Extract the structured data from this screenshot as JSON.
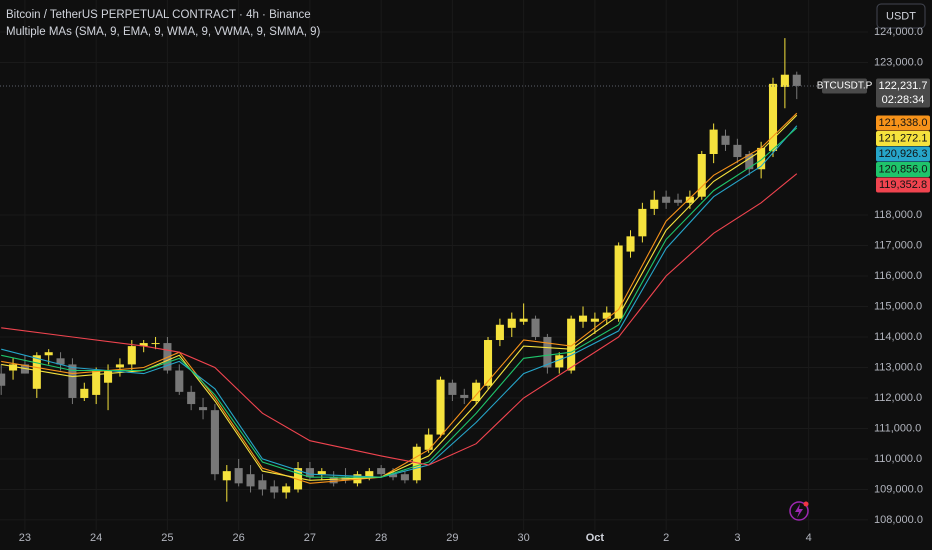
{
  "chart_data": {
    "type": "candlestick",
    "title": "Bitcoin / TetherUS PERPETUAL CONTRACT · 4h · Binance",
    "indicator": "Multiple MAs (SMA, 9, EMA, 9, WMA, 9, VWMA, 9, SMMA, 9)",
    "currency": "USDT",
    "symbol": "BTCUSDT.P",
    "countdown": "02:28:34",
    "up_color": "#f5e23d",
    "down_color": "#787878",
    "open": [
      112800,
      112900,
      113100,
      112300,
      113400,
      113300,
      113100,
      112000,
      112100,
      112500,
      113000,
      113100,
      113700,
      113800,
      113800,
      112900,
      112200,
      111700,
      111600,
      109300,
      109700,
      109500,
      109300,
      109100,
      108900,
      109000,
      109700,
      109500,
      109400,
      109400,
      109200,
      109400,
      109700,
      109500,
      109500,
      109300,
      110300,
      110800,
      112500,
      112100,
      111900,
      112400,
      113900,
      114300,
      114500,
      114600,
      114000,
      113000,
      112900,
      114500,
      114500,
      114600,
      114600,
      116800,
      117300,
      118200,
      118600,
      118500,
      118400,
      118600,
      120000,
      120600,
      120300,
      120000,
      119500,
      120100,
      122200,
      122600
    ],
    "high": [
      113100,
      113300,
      113400,
      113500,
      113600,
      113500,
      113300,
      112500,
      113000,
      113100,
      113300,
      113900,
      113900,
      114000,
      114000,
      113100,
      112400,
      112000,
      111800,
      109800,
      110000,
      109800,
      109500,
      109300,
      109200,
      109900,
      109900,
      109700,
      109600,
      109700,
      109600,
      109700,
      109800,
      109700,
      109600,
      110500,
      111000,
      112700,
      112600,
      112300,
      112600,
      114000,
      114600,
      114800,
      115100,
      114700,
      114100,
      113500,
      114700,
      115000,
      114800,
      115000,
      117100,
      117500,
      118400,
      118800,
      118800,
      118700,
      118800,
      120100,
      121000,
      120800,
      120500,
      120100,
      120400,
      122500,
      123800,
      122700
    ],
    "low": [
      112100,
      112600,
      112800,
      112000,
      113100,
      112900,
      111800,
      111900,
      111800,
      111600,
      112700,
      112900,
      113500,
      113600,
      112800,
      112100,
      111600,
      111300,
      109300,
      108600,
      109100,
      108900,
      108800,
      108700,
      108700,
      108900,
      109300,
      109300,
      109100,
      109200,
      109100,
      109300,
      109400,
      109300,
      109200,
      109200,
      110200,
      110700,
      111900,
      111800,
      111800,
      112300,
      113700,
      114000,
      114400,
      113900,
      112800,
      112800,
      112800,
      114300,
      114100,
      114400,
      114500,
      116600,
      117100,
      118000,
      118200,
      118300,
      118200,
      118500,
      119700,
      120100,
      119700,
      119300,
      119200,
      119900,
      121500,
      121800
    ],
    "close": [
      112400,
      113100,
      112800,
      113400,
      113500,
      113100,
      112000,
      112300,
      112900,
      112900,
      113100,
      113700,
      113800,
      113800,
      112900,
      112200,
      111800,
      111600,
      109500,
      109600,
      109200,
      109100,
      109000,
      108900,
      109100,
      109700,
      109400,
      109600,
      109200,
      109300,
      109500,
      109600,
      109500,
      109400,
      109300,
      110400,
      110800,
      112600,
      112100,
      112000,
      112500,
      113900,
      114400,
      114600,
      114600,
      114000,
      113000,
      113400,
      114600,
      114700,
      114600,
      114800,
      117000,
      117300,
      118200,
      118500,
      118400,
      118400,
      118600,
      120000,
      120800,
      120300,
      119900,
      119500,
      120200,
      122300,
      122600,
      122231.7
    ],
    "last_price": {
      "value": 122231.7,
      "label": "122,231.7"
    },
    "series": [
      {
        "color": "#f7931a",
        "x": [
          0,
          6,
          12,
          15,
          18,
          22,
          26,
          32,
          36,
          40,
          44,
          48,
          52,
          56,
          60,
          64,
          67
        ],
        "values": [
          113200,
          112800,
          113000,
          113500,
          112000,
          109700,
          109200,
          109400,
          110300,
          112100,
          113900,
          113700,
          114900,
          117800,
          119300,
          120200,
          121338.0
        ],
        "price_label": "121,338.0"
      },
      {
        "color": "#f5e23d",
        "x": [
          0,
          6,
          12,
          15,
          18,
          22,
          26,
          32,
          36,
          40,
          44,
          48,
          52,
          56,
          60,
          64,
          67
        ],
        "values": [
          113100,
          112700,
          112900,
          113400,
          111900,
          109600,
          109300,
          109400,
          110100,
          111800,
          113700,
          113600,
          114700,
          117500,
          119100,
          120100,
          121272.1
        ],
        "price_label": "121,272.1"
      },
      {
        "color": "#26a5c9",
        "x": [
          0,
          6,
          12,
          15,
          18,
          22,
          26,
          32,
          36,
          40,
          44,
          48,
          52,
          56,
          60,
          64,
          67
        ],
        "values": [
          113600,
          113000,
          112800,
          113200,
          112300,
          110000,
          109500,
          109400,
          109800,
          111200,
          112800,
          113400,
          114200,
          116900,
          118600,
          119600,
          120926.3
        ],
        "price_label": "120,926.3"
      },
      {
        "color": "#1fc46b",
        "x": [
          0,
          6,
          12,
          15,
          18,
          22,
          26,
          32,
          36,
          40,
          44,
          48,
          52,
          56,
          60,
          64,
          67
        ],
        "values": [
          113400,
          112900,
          112900,
          113300,
          112100,
          109900,
          109400,
          109400,
          109900,
          111500,
          113300,
          113500,
          114400,
          117200,
          118800,
          119800,
          120856.0
        ],
        "price_label": "120,856.0"
      },
      {
        "color": "#f0444f",
        "x": [
          0,
          6,
          12,
          15,
          18,
          22,
          26,
          32,
          36,
          40,
          44,
          48,
          52,
          56,
          60,
          64,
          67
        ],
        "values": [
          114300,
          114000,
          113700,
          113500,
          113000,
          111500,
          110600,
          110100,
          109800,
          110500,
          112000,
          113000,
          114000,
          116000,
          117400,
          118400,
          119352.8
        ],
        "price_label": "119,352.8"
      }
    ],
    "xlim": [
      -0.1,
      73
    ],
    "xticks": [
      {
        "value": 2,
        "label": "23"
      },
      {
        "value": 8,
        "label": "24"
      },
      {
        "value": 14,
        "label": "25"
      },
      {
        "value": 20,
        "label": "26"
      },
      {
        "value": 26,
        "label": "27"
      },
      {
        "value": 32,
        "label": "28"
      },
      {
        "value": 38,
        "label": "29"
      },
      {
        "value": 44,
        "label": "30"
      },
      {
        "value": 50,
        "label": "Oct"
      },
      {
        "value": 56,
        "label": "2"
      },
      {
        "value": 62,
        "label": "3"
      },
      {
        "value": 68,
        "label": "4"
      }
    ],
    "ylim": [
      107670,
      125050
    ],
    "yticks": [
      {
        "value": 124000,
        "label": "124,000.0"
      },
      {
        "value": 123000,
        "label": "123,000.0"
      },
      {
        "value": 118000,
        "label": "118,000.0"
      },
      {
        "value": 117000,
        "label": "117,000.0"
      },
      {
        "value": 116000,
        "label": "116,000.0"
      },
      {
        "value": 115000,
        "label": "115,000.0"
      },
      {
        "value": 114000,
        "label": "114,000.0"
      },
      {
        "value": 113000,
        "label": "113,000.0"
      },
      {
        "value": 112000,
        "label": "112,000.0"
      },
      {
        "value": 111000,
        "label": "111,000.0"
      },
      {
        "value": 110000,
        "label": "110,000.0"
      },
      {
        "value": 109000,
        "label": "109,000.0"
      },
      {
        "value": 108000,
        "label": "108,000.0"
      }
    ],
    "grid": true
  }
}
